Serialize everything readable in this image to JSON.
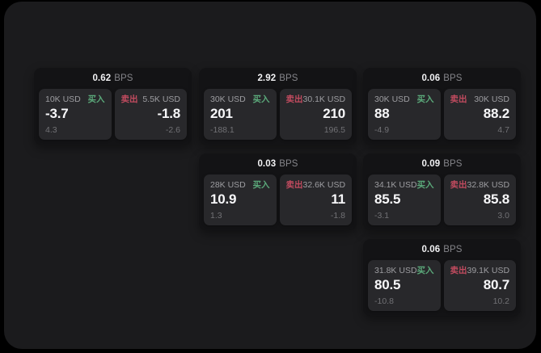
{
  "labels": {
    "bps_unit": "BPS",
    "buy": "买入",
    "sell": "卖出"
  },
  "colors": {
    "background": "#000000",
    "panel_bg": "#1b1b1d",
    "card_bg": "#131315",
    "pane_bg": "#28282b",
    "buy_green": "#5ba97a",
    "sell_red": "#c14b5f"
  },
  "cards": [
    {
      "bps": "0.62",
      "col": 0,
      "row": 0,
      "buy": {
        "amount": "10K USD",
        "value": "-3.7",
        "delta": "4.3"
      },
      "sell": {
        "amount": "5.5K USD",
        "value": "-1.8",
        "delta": "-2.6"
      }
    },
    {
      "bps": "2.92",
      "col": 1,
      "row": 0,
      "buy": {
        "amount": "30K USD",
        "value": "201",
        "delta": "-188.1"
      },
      "sell": {
        "amount": "30.1K USD",
        "value": "210",
        "delta": "196.5"
      }
    },
    {
      "bps": "0.06",
      "col": 2,
      "row": 0,
      "buy": {
        "amount": "30K USD",
        "value": "88",
        "delta": "-4.9"
      },
      "sell": {
        "amount": "30K USD",
        "value": "88.2",
        "delta": "4.7"
      }
    },
    {
      "bps": "0.03",
      "col": 1,
      "row": 1,
      "buy": {
        "amount": "28K USD",
        "value": "10.9",
        "delta": "1.3"
      },
      "sell": {
        "amount": "32.6K USD",
        "value": "11",
        "delta": "-1.8"
      }
    },
    {
      "bps": "0.09",
      "col": 2,
      "row": 1,
      "buy": {
        "amount": "34.1K USD",
        "value": "85.5",
        "delta": "-3.1"
      },
      "sell": {
        "amount": "32.8K USD",
        "value": "85.8",
        "delta": "3.0"
      }
    },
    {
      "bps": "0.06",
      "col": 2,
      "row": 2,
      "buy": {
        "amount": "31.8K USD",
        "value": "80.5",
        "delta": "-10.8"
      },
      "sell": {
        "amount": "39.1K USD",
        "value": "80.7",
        "delta": "10.2"
      }
    }
  ]
}
